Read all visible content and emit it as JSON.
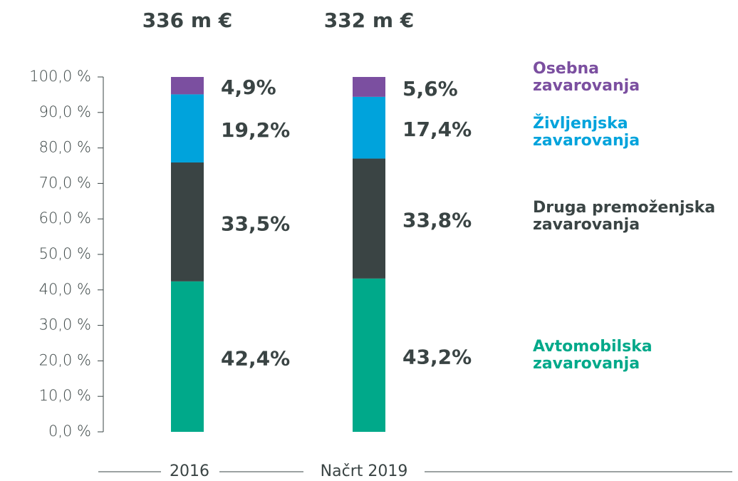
{
  "chart_data": {
    "type": "stacked_bar",
    "categories": [
      "2016",
      "Načrt 2019"
    ],
    "total_labels": [
      "336 m €",
      "332 m €"
    ],
    "ylim": [
      0,
      100
    ],
    "yticks": [
      {
        "value": 0,
        "label": "0,0 %"
      },
      {
        "value": 10,
        "label": "10,0 %"
      },
      {
        "value": 20,
        "label": "20,0 %"
      },
      {
        "value": 30,
        "label": "30,0 %"
      },
      {
        "value": 40,
        "label": "40,0 %"
      },
      {
        "value": 50,
        "label": "50,0 %"
      },
      {
        "value": 60,
        "label": "60,0 %"
      },
      {
        "value": 70,
        "label": "70,0 %"
      },
      {
        "value": 80,
        "label": "80,0 %"
      },
      {
        "value": 90,
        "label": "90,0 %"
      },
      {
        "value": 100,
        "label": "100,0 %"
      }
    ],
    "series": [
      {
        "name": "Avtomobilska zavarovanja",
        "color": "#00a98a",
        "values": [
          42.4,
          43.2
        ],
        "value_labels": [
          "42,4%",
          "43,2%"
        ]
      },
      {
        "name": "Druga premoženjska zavarovanja",
        "color": "#3a4444",
        "values": [
          33.5,
          33.8
        ],
        "value_labels": [
          "33,5%",
          "33,8%"
        ]
      },
      {
        "name": "Življenjska zavarovanja",
        "color": "#00a3dc",
        "values": [
          19.2,
          17.4
        ],
        "value_labels": [
          "19,2%",
          "17,4%"
        ]
      },
      {
        "name": "Osebna zavarovanja",
        "color": "#7b4fa0",
        "values": [
          4.9,
          5.6
        ],
        "value_labels": [
          "4,9%",
          "5,6%"
        ]
      }
    ]
  }
}
